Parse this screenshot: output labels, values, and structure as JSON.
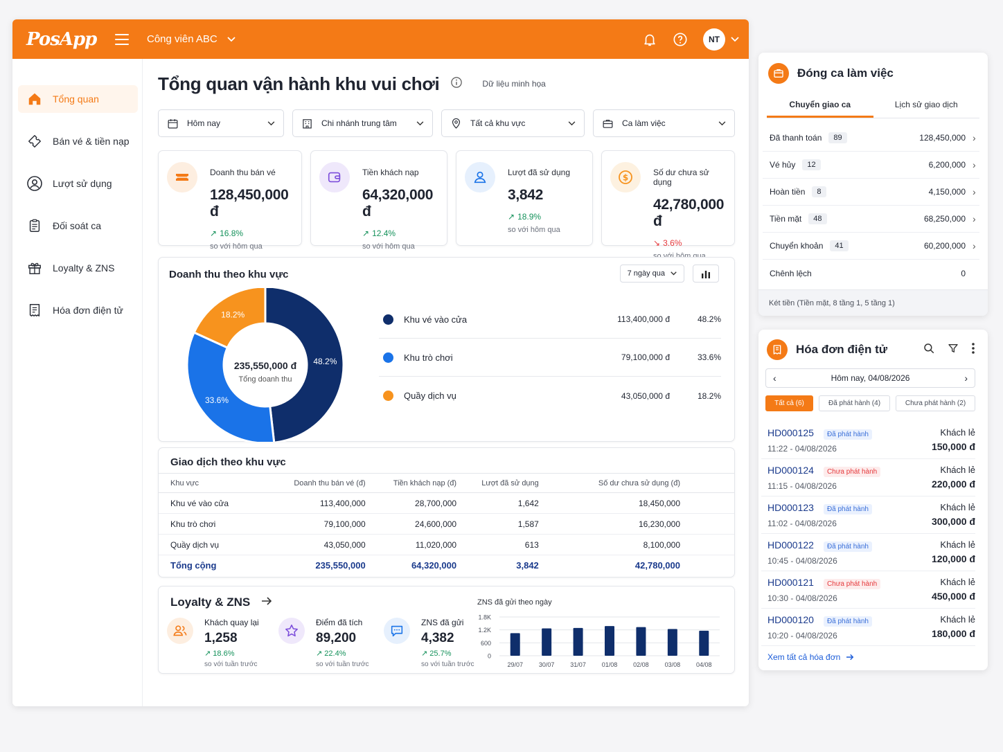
{
  "app": {
    "logo": "PosApp",
    "park": "Công viên ABC",
    "user_initials": "NT"
  },
  "colors": {
    "brand": "#f47a16",
    "navy": "#0f2e6b",
    "blue": "#1a73e8",
    "orange": "#f7931e",
    "up": "#14915a",
    "down": "#e5383b"
  },
  "sidebar": {
    "items": [
      {
        "label": "Tổng quan",
        "icon": "home-icon",
        "active": true
      },
      {
        "label": "Bán vé & tiền nạp",
        "icon": "ticket-icon"
      },
      {
        "label": "Lượt sử dụng",
        "icon": "user-icon"
      },
      {
        "label": "Đối soát ca",
        "icon": "clipboard-icon"
      },
      {
        "label": "Loyalty & ZNS",
        "icon": "gift-icon"
      },
      {
        "label": "Hóa đơn điện tử",
        "icon": "receipt-icon"
      }
    ]
  },
  "page": {
    "title": "Tổng quan vận hành khu vui chơi",
    "demo_note": "Dữ liệu minh họa"
  },
  "filters": {
    "date": "Hôm nay",
    "branch": "Chi nhánh trung tâm",
    "area": "Tất cả khu vực",
    "shift": "Ca làm việc"
  },
  "kpis": [
    {
      "label": "Doanh thu bán vé",
      "value": "128,450,000 đ",
      "change": "16.8%",
      "dir": "up",
      "sub": "so với hôm qua"
    },
    {
      "label": "Tiền khách nạp",
      "value": "64,320,000 đ",
      "change": "12.4%",
      "dir": "up",
      "sub": "so với hôm qua"
    },
    {
      "label": "Lượt đã sử dụng",
      "value": "3,842",
      "change": "18.9%",
      "dir": "up",
      "sub": "so với hôm qua"
    },
    {
      "label": "Số dư chưa sử dụng",
      "value": "42,780,000 đ",
      "change": "3.6%",
      "dir": "down",
      "sub": "so với hôm qua"
    }
  ],
  "revenue": {
    "title": "Doanh thu theo khu vực",
    "period": "7 ngày qua",
    "total": "235,550,000 đ",
    "total_label": "Tổng doanh thu",
    "segments": [
      {
        "name": "Khu vé vào cửa",
        "value": "113,400,000 đ",
        "pct": "48.2%",
        "color": "#0f2e6b",
        "share": 48.2
      },
      {
        "name": "Khu trò chơi",
        "value": "79,100,000 đ",
        "pct": "33.6%",
        "color": "#1a73e8",
        "share": 33.6
      },
      {
        "name": "Quầy dịch vụ",
        "value": "43,050,000 đ",
        "pct": "18.2%",
        "color": "#f7931e",
        "share": 18.2
      }
    ]
  },
  "transactions": {
    "title": "Giao dịch theo khu vực",
    "headers": [
      "Khu vực",
      "Doanh thu bán vé (đ)",
      "Tiền khách nạp (đ)",
      "Lượt đã sử dụng",
      "Số dư chưa sử dụng (đ)"
    ],
    "rows": [
      [
        "Khu vé vào cửa",
        "113,400,000",
        "28,700,000",
        "1,642",
        "18,450,000"
      ],
      [
        "Khu trò chơi",
        "79,100,000",
        "24,600,000",
        "1,587",
        "16,230,000"
      ],
      [
        "Quầy dịch vụ",
        "43,050,000",
        "11,020,000",
        "613",
        "8,100,000"
      ],
      [
        "Tổng cộng",
        "235,550,000",
        "64,320,000",
        "3,842",
        "42,780,000"
      ]
    ]
  },
  "loyalty": {
    "title": "Loyalty & ZNS",
    "metrics": [
      {
        "label": "Khách quay lại",
        "value": "1,258",
        "change": "18.6%",
        "sub": "so với tuần trước",
        "icon": "users-icon"
      },
      {
        "label": "Điểm đã tích",
        "value": "89,200",
        "change": "22.4%",
        "sub": "so với tuần trước",
        "icon": "star-icon"
      },
      {
        "label": "ZNS đã gửi",
        "value": "4,382",
        "change": "25.7%",
        "sub": "so với tuần trước",
        "icon": "chat-icon"
      }
    ]
  },
  "chart_data": {
    "type": "bar",
    "title": "ZNS đã gửi theo ngày",
    "categories": [
      "29/07",
      "30/07",
      "31/07",
      "01/08",
      "02/08",
      "03/08",
      "04/08"
    ],
    "values": [
      1050,
      1270,
      1290,
      1380,
      1330,
      1240,
      1160
    ],
    "yticks": [
      "1.8K",
      "1.2K",
      "600",
      "0"
    ],
    "ylim": [
      0,
      1800
    ],
    "color": "#0f2e6b"
  },
  "shift_panel": {
    "title": "Đóng ca làm việc",
    "tabs": [
      "Chuyển giao ca",
      "Lịch sử giao dịch"
    ],
    "rows": [
      {
        "label": "Đã thanh toán",
        "count": "89",
        "value": "128,450,000"
      },
      {
        "label": "Vé hủy",
        "count": "12",
        "value": "6,200,000"
      },
      {
        "label": "Hoàn tiền",
        "count": "8",
        "value": "4,150,000"
      },
      {
        "label": "Tiền mặt",
        "count": "48",
        "value": "68,250,000"
      },
      {
        "label": "Chuyển khoản",
        "count": "41",
        "value": "60,200,000"
      },
      {
        "label": "Chênh lệch",
        "count": "",
        "value": "0"
      }
    ],
    "footer": "Két tiền (Tiền mặt, 8 tầng 1, 5 tầng 1)"
  },
  "invoice_panel": {
    "title": "Hóa đơn điện tử",
    "date": "Hôm nay, 04/08/2026",
    "filters": [
      "Tất cả (6)",
      "Đã phát hành (4)",
      "Chưa phát hành (2)"
    ],
    "items": [
      {
        "code": "HD000125",
        "status": "Đã phát hành",
        "ok": true,
        "time": "11:22 - 04/08/2026",
        "customer": "Khách lẻ",
        "amount": "150,000 đ"
      },
      {
        "code": "HD000124",
        "status": "Chưa phát hành",
        "ok": false,
        "time": "11:15 - 04/08/2026",
        "customer": "Khách lẻ",
        "amount": "220,000 đ"
      },
      {
        "code": "HD000123",
        "status": "Đã phát hành",
        "ok": true,
        "time": "11:02 - 04/08/2026",
        "customer": "Khách lẻ",
        "amount": "300,000 đ"
      },
      {
        "code": "HD000122",
        "status": "Đã phát hành",
        "ok": true,
        "time": "10:45 - 04/08/2026",
        "customer": "Khách lẻ",
        "amount": "120,000 đ"
      },
      {
        "code": "HD000121",
        "status": "Chưa phát hành",
        "ok": false,
        "time": "10:30 - 04/08/2026",
        "customer": "Khách lẻ",
        "amount": "450,000 đ"
      },
      {
        "code": "HD000120",
        "status": "Đã phát hành",
        "ok": true,
        "time": "10:20 - 04/08/2026",
        "customer": "Khách lẻ",
        "amount": "180,000 đ"
      }
    ],
    "view_all": "Xem tất cả hóa đơn"
  }
}
